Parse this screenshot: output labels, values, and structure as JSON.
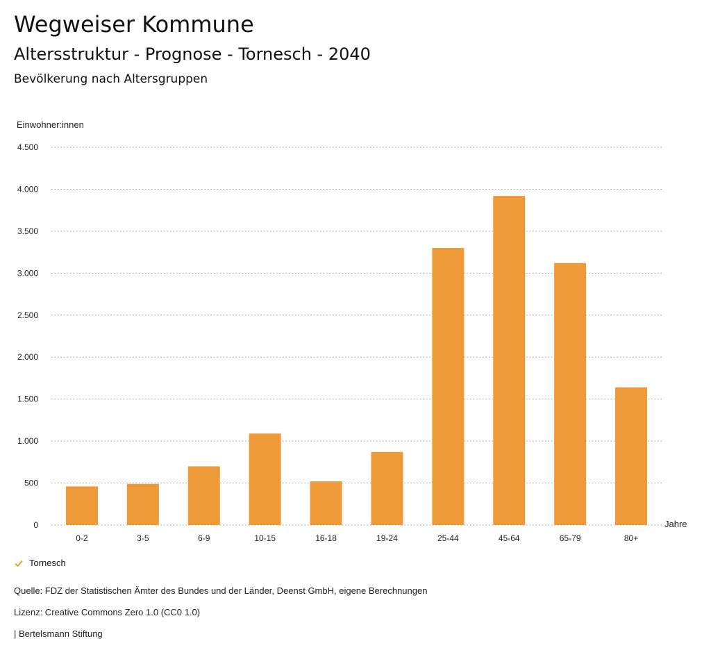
{
  "header": {
    "title": "Wegweiser Kommune",
    "subtitle": "Altersstruktur - Prognose - Tornesch - 2040",
    "section": "Bevölkerung nach Altersgruppen"
  },
  "chart_data": {
    "type": "bar",
    "ylabel": "Einwohner:innen",
    "xlabel": "Jahre",
    "ylim": [
      0,
      4500
    ],
    "yticks": [
      0,
      500,
      1000,
      1500,
      2000,
      2500,
      3000,
      3500,
      4000,
      4500
    ],
    "ytick_labels": [
      "0",
      "500",
      "1.000",
      "1.500",
      "2.000",
      "2.500",
      "3.000",
      "3.500",
      "4.000",
      "4.500"
    ],
    "categories": [
      "0-2",
      "3-5",
      "6-9",
      "10-15",
      "16-18",
      "19-24",
      "25-44",
      "45-64",
      "65-79",
      "80+"
    ],
    "series": [
      {
        "name": "Tornesch",
        "color": "#ee9a38",
        "values": [
          460,
          490,
          700,
          1090,
          520,
          870,
          3300,
          3920,
          3120,
          1640
        ]
      }
    ],
    "grid": true,
    "legend_position": "bottom-left"
  },
  "footer": {
    "source": "Quelle: FDZ der Statistischen Ämter des Bundes und der Länder, Deenst GmbH, eigene Berechnungen",
    "license": "Lizenz: Creative Commons Zero 1.0 (CC0 1.0)",
    "brand": "| Bertelsmann Stiftung"
  }
}
